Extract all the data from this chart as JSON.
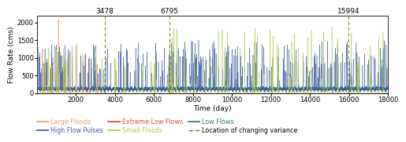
{
  "title": "",
  "xlabel": "Time (day)",
  "ylabel": "Flow Rate (cms)",
  "xlim": [
    0,
    18000
  ],
  "ylim": [
    0,
    2200
  ],
  "xticks": [
    2000,
    4000,
    6000,
    8000,
    10000,
    12000,
    14000,
    16000,
    18000
  ],
  "yticks": [
    0,
    500,
    1000,
    1500,
    2000
  ],
  "change_points": [
    3478,
    6795,
    15994
  ],
  "colors": {
    "large_floods": "#E8A070",
    "small_floods": "#AACC44",
    "high_flow_pulses": "#3B5FA0",
    "low_flows": "#3A7A60",
    "extreme_low_flows": "#CC5533",
    "change_point_line": "#8B6914"
  },
  "legend": {
    "large_floods": "Large Floods",
    "small_floods": "Small Floods",
    "high_flow_pulses": "High Flow Pulses",
    "low_flows": "Low Flows",
    "extreme_low_flows": "Extreme Low Flows",
    "change_variance": "Location of changing variance"
  },
  "background_color": "#FFFFFF",
  "seed": 42,
  "n_days": 18000
}
